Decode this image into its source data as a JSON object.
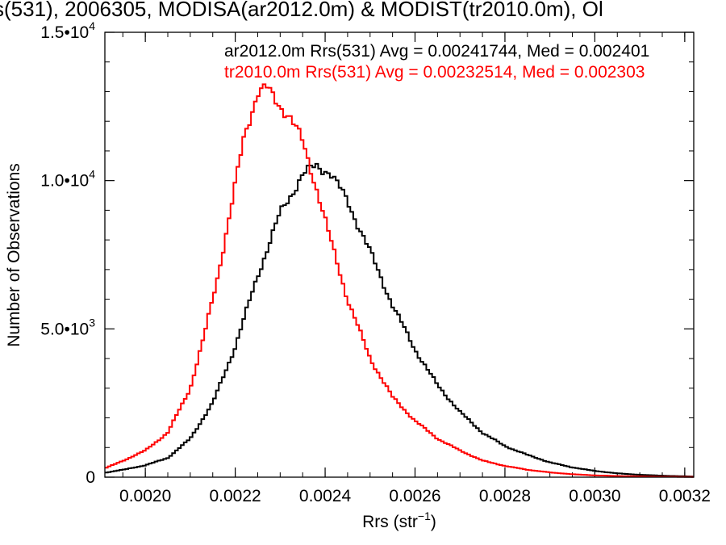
{
  "chart_data": {
    "type": "line",
    "title": "s(531), 2006305, MODISA(ar2012.0m) & MODIST(tr2010.0m), Ol",
    "xlabel": "Rrs (str",
    "xlabel_sup": "−1",
    "xlabel_close": ")",
    "ylabel": "Number of Observations",
    "xlim": [
      0.00191,
      0.00322
    ],
    "ylim": [
      0,
      15000
    ],
    "x_ticks": [
      {
        "value": 0.002,
        "label": "0.0020"
      },
      {
        "value": 0.0022,
        "label": "0.0022"
      },
      {
        "value": 0.0024,
        "label": "0.0024"
      },
      {
        "value": 0.0026,
        "label": "0.0026"
      },
      {
        "value": 0.0028,
        "label": "0.0028"
      },
      {
        "value": 0.003,
        "label": "0.0030"
      },
      {
        "value": 0.0032,
        "label": "0.0032"
      }
    ],
    "y_ticks": [
      {
        "value": 0,
        "mant": "0",
        "exp": ""
      },
      {
        "value": 5000,
        "mant": "5.0•10",
        "exp": "3"
      },
      {
        "value": 10000,
        "mant": "1.0•10",
        "exp": "4"
      },
      {
        "value": 15000,
        "mant": "1.5•10",
        "exp": "4"
      }
    ],
    "grid": false,
    "legend_position": "top",
    "series": [
      {
        "name": "ar2012.0m Rrs(531) Avg = 0.00241744, Med = 0.002401",
        "color": "#000000",
        "x": [
          0.00191,
          0.00195,
          0.002,
          0.00205,
          0.0021,
          0.00215,
          0.0022,
          0.00225,
          0.0023,
          0.00235,
          0.00238,
          0.00241,
          0.00245,
          0.0025,
          0.00255,
          0.0026,
          0.00265,
          0.0027,
          0.00275,
          0.0028,
          0.00285,
          0.0029,
          0.00295,
          0.003,
          0.00305,
          0.0031,
          0.00315,
          0.0032,
          0.00322
        ],
        "y": [
          150,
          250,
          400,
          650,
          1300,
          2500,
          4400,
          6800,
          8900,
          10200,
          10500,
          10300,
          9300,
          7600,
          5800,
          4300,
          3100,
          2200,
          1500,
          1050,
          750,
          500,
          330,
          210,
          130,
          80,
          50,
          30,
          20
        ]
      },
      {
        "name": "tr2010.0m Rrs(531) Avg = 0.00232514, Med = 0.002303",
        "color": "#ff0000",
        "x": [
          0.00191,
          0.00195,
          0.002,
          0.00205,
          0.0021,
          0.00213,
          0.00216,
          0.00219,
          0.00222,
          0.00225,
          0.00227,
          0.00229,
          0.00232,
          0.00235,
          0.00238,
          0.00241,
          0.00245,
          0.0025,
          0.00255,
          0.0026,
          0.00265,
          0.0027,
          0.00275,
          0.0028,
          0.00285,
          0.0029,
          0.00295,
          0.003,
          0.00305,
          0.0031,
          0.00315,
          0.0032,
          0.00322
        ],
        "y": [
          300,
          550,
          900,
          1500,
          3000,
          4700,
          6700,
          9000,
          11500,
          13000,
          13100,
          12700,
          12200,
          11300,
          9800,
          8100,
          6000,
          4000,
          2700,
          1900,
          1300,
          900,
          560,
          380,
          250,
          160,
          100,
          60,
          40,
          25,
          15,
          10,
          8
        ]
      }
    ]
  }
}
